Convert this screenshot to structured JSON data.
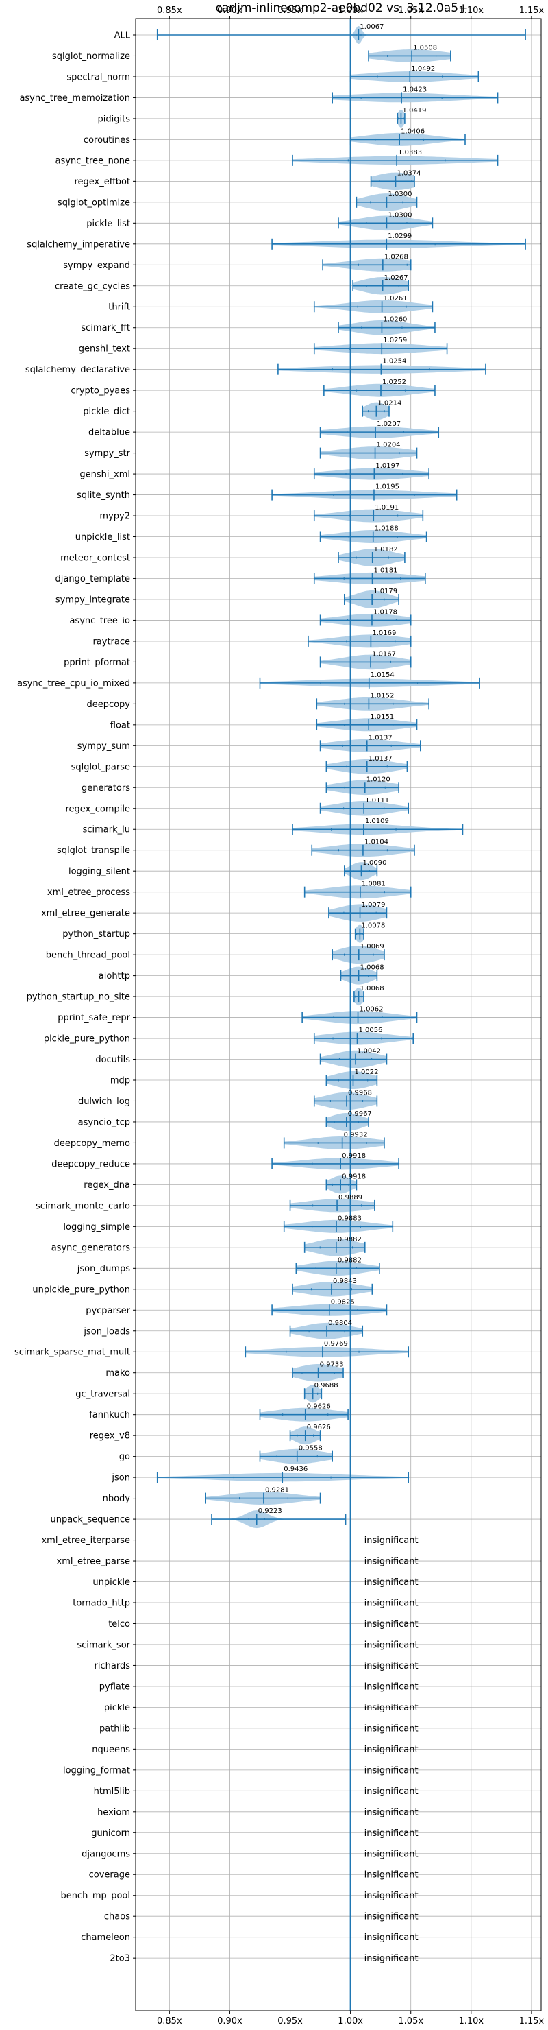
{
  "chart_data": {
    "type": "violin",
    "title": "carljm-inlinecomp2-ae0bd02 vs. 3.12.0a5+",
    "xlabel": "",
    "ylabel": "",
    "x_ticks": [
      "0.85x",
      "0.90x",
      "0.95x",
      "1.00x",
      "1.05x",
      "1.10x",
      "1.15x"
    ],
    "x_tick_values": [
      0.85,
      0.9,
      0.95,
      1.0,
      1.05,
      1.1,
      1.15
    ],
    "xlim": [
      0.822,
      1.158
    ],
    "reference_line": 1.0,
    "grid": true,
    "colors": {
      "violin": "#aecde6",
      "line": "#1f77b4"
    },
    "insignificant_label": "insignificant",
    "benchmarks": [
      {
        "name": "ALL",
        "label": "1.0067",
        "median": 1.0067,
        "min": 0.84,
        "max": 1.145,
        "spread": 0.003
      },
      {
        "name": "sqlglot_normalize",
        "label": "1.0508",
        "median": 1.0508,
        "min": 1.015,
        "max": 1.083,
        "spread": 0.03
      },
      {
        "name": "spectral_norm",
        "label": "1.0492",
        "median": 1.0492,
        "min": 1.0,
        "max": 1.106,
        "spread": 0.04
      },
      {
        "name": "async_tree_memoization",
        "label": "1.0423",
        "median": 1.0423,
        "min": 0.985,
        "max": 1.122,
        "spread": 0.05
      },
      {
        "name": "pidigits",
        "label": "1.0419",
        "median": 1.0419,
        "min": 1.039,
        "max": 1.045,
        "spread": 0.003
      },
      {
        "name": "coroutines",
        "label": "1.0406",
        "median": 1.0406,
        "min": 1.0,
        "max": 1.095,
        "spread": 0.03
      },
      {
        "name": "async_tree_none",
        "label": "1.0383",
        "median": 1.0383,
        "min": 0.952,
        "max": 1.122,
        "spread": 0.06
      },
      {
        "name": "regex_effbot",
        "label": "1.0374",
        "median": 1.0374,
        "min": 1.017,
        "max": 1.053,
        "spread": 0.02
      },
      {
        "name": "sqlglot_optimize",
        "label": "1.0300",
        "median": 1.03,
        "min": 1.005,
        "max": 1.055,
        "spread": 0.02
      },
      {
        "name": "pickle_list",
        "label": "1.0300",
        "median": 1.03,
        "min": 0.99,
        "max": 1.068,
        "spread": 0.025
      },
      {
        "name": "sqlalchemy_imperative",
        "label": "1.0299",
        "median": 1.0299,
        "min": 0.935,
        "max": 1.145,
        "spread": 0.06
      },
      {
        "name": "sympy_expand",
        "label": "1.0268",
        "median": 1.0268,
        "min": 0.977,
        "max": 1.05,
        "spread": 0.03
      },
      {
        "name": "create_gc_cycles",
        "label": "1.0267",
        "median": 1.0267,
        "min": 1.002,
        "max": 1.048,
        "spread": 0.02
      },
      {
        "name": "thrift",
        "label": "1.0261",
        "median": 1.0261,
        "min": 0.97,
        "max": 1.068,
        "spread": 0.03
      },
      {
        "name": "scimark_fft",
        "label": "1.0260",
        "median": 1.026,
        "min": 0.99,
        "max": 1.07,
        "spread": 0.025
      },
      {
        "name": "genshi_text",
        "label": "1.0259",
        "median": 1.0259,
        "min": 0.97,
        "max": 1.08,
        "spread": 0.04
      },
      {
        "name": "sqlalchemy_declarative",
        "label": "1.0254",
        "median": 1.0254,
        "min": 0.94,
        "max": 1.112,
        "spread": 0.06
      },
      {
        "name": "crypto_pyaes",
        "label": "1.0252",
        "median": 1.0252,
        "min": 0.978,
        "max": 1.07,
        "spread": 0.03
      },
      {
        "name": "pickle_dict",
        "label": "1.0214",
        "median": 1.0214,
        "min": 1.01,
        "max": 1.032,
        "spread": 0.01
      },
      {
        "name": "deltablue",
        "label": "1.0207",
        "median": 1.0207,
        "min": 0.975,
        "max": 1.073,
        "spread": 0.035
      },
      {
        "name": "sympy_str",
        "label": "1.0204",
        "median": 1.0204,
        "min": 0.975,
        "max": 1.055,
        "spread": 0.03
      },
      {
        "name": "genshi_xml",
        "label": "1.0197",
        "median": 1.0197,
        "min": 0.97,
        "max": 1.065,
        "spread": 0.035
      },
      {
        "name": "sqlite_synth",
        "label": "1.0195",
        "median": 1.0195,
        "min": 0.935,
        "max": 1.088,
        "spread": 0.05
      },
      {
        "name": "mypy2",
        "label": "1.0191",
        "median": 1.0191,
        "min": 0.97,
        "max": 1.06,
        "spread": 0.03
      },
      {
        "name": "unpickle_list",
        "label": "1.0188",
        "median": 1.0188,
        "min": 0.975,
        "max": 1.063,
        "spread": 0.03
      },
      {
        "name": "meteor_contest",
        "label": "1.0182",
        "median": 1.0182,
        "min": 0.99,
        "max": 1.045,
        "spread": 0.02
      },
      {
        "name": "django_template",
        "label": "1.0181",
        "median": 1.0181,
        "min": 0.97,
        "max": 1.062,
        "spread": 0.035
      },
      {
        "name": "sympy_integrate",
        "label": "1.0179",
        "median": 1.0179,
        "min": 0.995,
        "max": 1.04,
        "spread": 0.015
      },
      {
        "name": "async_tree_io",
        "label": "1.0178",
        "median": 1.0178,
        "min": 0.975,
        "max": 1.05,
        "spread": 0.03
      },
      {
        "name": "raytrace",
        "label": "1.0169",
        "median": 1.0169,
        "min": 0.965,
        "max": 1.05,
        "spread": 0.03
      },
      {
        "name": "pprint_pformat",
        "label": "1.0167",
        "median": 1.0167,
        "min": 0.975,
        "max": 1.05,
        "spread": 0.025
      },
      {
        "name": "async_tree_cpu_io_mixed",
        "label": "1.0154",
        "median": 1.0154,
        "min": 0.925,
        "max": 1.107,
        "spread": 0.06
      },
      {
        "name": "deepcopy",
        "label": "1.0152",
        "median": 1.0152,
        "min": 0.972,
        "max": 1.065,
        "spread": 0.03
      },
      {
        "name": "float",
        "label": "1.0151",
        "median": 1.0151,
        "min": 0.972,
        "max": 1.055,
        "spread": 0.03
      },
      {
        "name": "sympy_sum",
        "label": "1.0137",
        "median": 1.0137,
        "min": 0.975,
        "max": 1.058,
        "spread": 0.03
      },
      {
        "name": "sqlglot_parse",
        "label": "1.0137",
        "median": 1.0137,
        "min": 0.98,
        "max": 1.047,
        "spread": 0.025
      },
      {
        "name": "generators",
        "label": "1.0120",
        "median": 1.012,
        "min": 0.98,
        "max": 1.04,
        "spread": 0.025
      },
      {
        "name": "regex_compile",
        "label": "1.0111",
        "median": 1.0111,
        "min": 0.975,
        "max": 1.048,
        "spread": 0.025
      },
      {
        "name": "scimark_lu",
        "label": "1.0109",
        "median": 1.0109,
        "min": 0.952,
        "max": 1.093,
        "spread": 0.04
      },
      {
        "name": "sqlglot_transpile",
        "label": "1.0104",
        "median": 1.0104,
        "min": 0.968,
        "max": 1.053,
        "spread": 0.03
      },
      {
        "name": "logging_silent",
        "label": "1.0090",
        "median": 1.009,
        "min": 0.995,
        "max": 1.022,
        "spread": 0.01
      },
      {
        "name": "xml_etree_process",
        "label": "1.0081",
        "median": 1.0081,
        "min": 0.962,
        "max": 1.05,
        "spread": 0.03
      },
      {
        "name": "xml_etree_generate",
        "label": "1.0079",
        "median": 1.0079,
        "min": 0.982,
        "max": 1.03,
        "spread": 0.02
      },
      {
        "name": "python_startup",
        "label": "1.0078",
        "median": 1.0078,
        "min": 1.004,
        "max": 1.011,
        "spread": 0.004
      },
      {
        "name": "bench_thread_pool",
        "label": "1.0069",
        "median": 1.0069,
        "min": 0.985,
        "max": 1.028,
        "spread": 0.018
      },
      {
        "name": "aiohttp",
        "label": "1.0068",
        "median": 1.0068,
        "min": 0.992,
        "max": 1.022,
        "spread": 0.012
      },
      {
        "name": "python_startup_no_site",
        "label": "1.0068",
        "median": 1.0068,
        "min": 1.003,
        "max": 1.011,
        "spread": 0.004
      },
      {
        "name": "pprint_safe_repr",
        "label": "1.0062",
        "median": 1.0062,
        "min": 0.96,
        "max": 1.055,
        "spread": 0.03
      },
      {
        "name": "pickle_pure_python",
        "label": "1.0056",
        "median": 1.0056,
        "min": 0.97,
        "max": 1.052,
        "spread": 0.03
      },
      {
        "name": "docutils",
        "label": "1.0042",
        "median": 1.0042,
        "min": 0.975,
        "max": 1.03,
        "spread": 0.02
      },
      {
        "name": "mdp",
        "label": "1.0022",
        "median": 1.0022,
        "min": 0.98,
        "max": 1.022,
        "spread": 0.018
      },
      {
        "name": "dulwich_log",
        "label": "0.9968",
        "median": 0.9968,
        "min": 0.97,
        "max": 1.022,
        "spread": 0.02
      },
      {
        "name": "asyncio_tcp",
        "label": "0.9967",
        "median": 0.9967,
        "min": 0.98,
        "max": 1.015,
        "spread": 0.015
      },
      {
        "name": "deepcopy_memo",
        "label": "0.9932",
        "median": 0.9932,
        "min": 0.945,
        "max": 1.028,
        "spread": 0.03
      },
      {
        "name": "deepcopy_reduce",
        "label": "0.9918",
        "median": 0.9918,
        "min": 0.935,
        "max": 1.04,
        "spread": 0.035
      },
      {
        "name": "regex_dna",
        "label": "0.9918",
        "median": 0.9918,
        "min": 0.98,
        "max": 1.005,
        "spread": 0.01
      },
      {
        "name": "scimark_monte_carlo",
        "label": "0.9889",
        "median": 0.9889,
        "min": 0.95,
        "max": 1.02,
        "spread": 0.03
      },
      {
        "name": "logging_simple",
        "label": "0.9883",
        "median": 0.9883,
        "min": 0.945,
        "max": 1.035,
        "spread": 0.03
      },
      {
        "name": "async_generators",
        "label": "0.9882",
        "median": 0.9882,
        "min": 0.962,
        "max": 1.012,
        "spread": 0.02
      },
      {
        "name": "json_dumps",
        "label": "0.9882",
        "median": 0.9882,
        "min": 0.955,
        "max": 1.024,
        "spread": 0.025
      },
      {
        "name": "unpickle_pure_python",
        "label": "0.9843",
        "median": 0.9843,
        "min": 0.952,
        "max": 1.018,
        "spread": 0.025
      },
      {
        "name": "pycparser",
        "label": "0.9825",
        "median": 0.9825,
        "min": 0.935,
        "max": 1.03,
        "spread": 0.035
      },
      {
        "name": "json_loads",
        "label": "0.9804",
        "median": 0.9804,
        "min": 0.95,
        "max": 1.01,
        "spread": 0.022
      },
      {
        "name": "scimark_sparse_mat_mult",
        "label": "0.9769",
        "median": 0.9769,
        "min": 0.913,
        "max": 1.048,
        "spread": 0.045
      },
      {
        "name": "mako",
        "label": "0.9733",
        "median": 0.9733,
        "min": 0.952,
        "max": 0.994,
        "spread": 0.02
      },
      {
        "name": "gc_traversal",
        "label": "0.9688",
        "median": 0.9688,
        "min": 0.962,
        "max": 0.976,
        "spread": 0.006
      },
      {
        "name": "fannkuch",
        "label": "0.9626",
        "median": 0.9626,
        "min": 0.925,
        "max": 0.998,
        "spread": 0.028
      },
      {
        "name": "regex_v8",
        "label": "0.9626",
        "median": 0.9626,
        "min": 0.95,
        "max": 0.975,
        "spread": 0.01
      },
      {
        "name": "go",
        "label": "0.9558",
        "median": 0.9558,
        "min": 0.925,
        "max": 0.985,
        "spread": 0.025
      },
      {
        "name": "json",
        "label": "0.9436",
        "median": 0.9436,
        "min": 0.84,
        "max": 1.048,
        "spread": 0.06
      },
      {
        "name": "nbody",
        "label": "0.9281",
        "median": 0.9281,
        "min": 0.88,
        "max": 0.975,
        "spread": 0.03
      },
      {
        "name": "unpack_sequence",
        "label": "0.9223",
        "median": 0.9223,
        "min": 0.885,
        "max": 0.996,
        "spread": 0.01
      },
      {
        "name": "xml_etree_iterparse",
        "insignificant": true
      },
      {
        "name": "xml_etree_parse",
        "insignificant": true
      },
      {
        "name": "unpickle",
        "insignificant": true
      },
      {
        "name": "tornado_http",
        "insignificant": true
      },
      {
        "name": "telco",
        "insignificant": true
      },
      {
        "name": "scimark_sor",
        "insignificant": true
      },
      {
        "name": "richards",
        "insignificant": true
      },
      {
        "name": "pyflate",
        "insignificant": true
      },
      {
        "name": "pickle",
        "insignificant": true
      },
      {
        "name": "pathlib",
        "insignificant": true
      },
      {
        "name": "nqueens",
        "insignificant": true
      },
      {
        "name": "logging_format",
        "insignificant": true
      },
      {
        "name": "html5lib",
        "insignificant": true
      },
      {
        "name": "hexiom",
        "insignificant": true
      },
      {
        "name": "gunicorn",
        "insignificant": true
      },
      {
        "name": "djangocms",
        "insignificant": true
      },
      {
        "name": "coverage",
        "insignificant": true
      },
      {
        "name": "bench_mp_pool",
        "insignificant": true
      },
      {
        "name": "chaos",
        "insignificant": true
      },
      {
        "name": "chameleon",
        "insignificant": true
      },
      {
        "name": "2to3",
        "insignificant": true
      }
    ]
  }
}
